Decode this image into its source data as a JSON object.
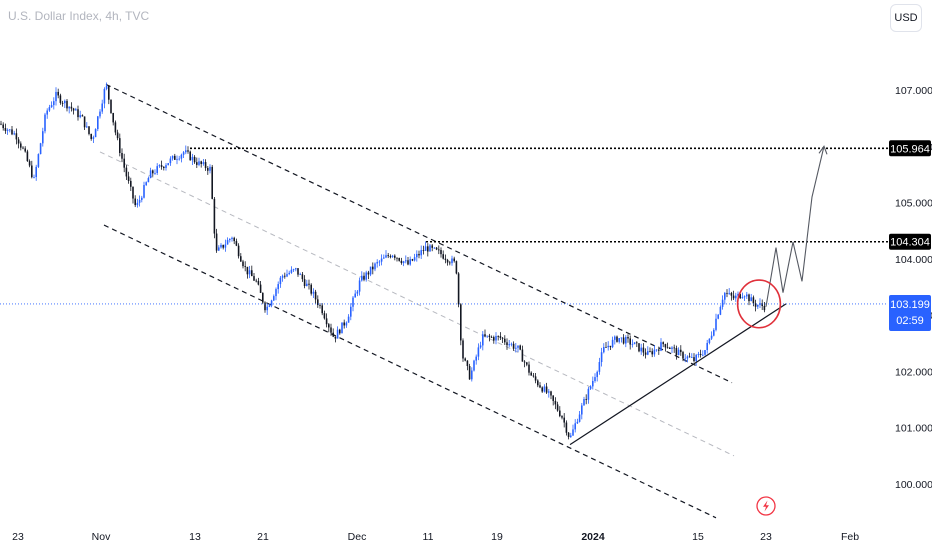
{
  "header": {
    "title": "U.S. Dollar Index, 4h, TVC",
    "currency_button": "USD"
  },
  "chart_data": {
    "type": "candlestick",
    "ylim": [
      99.6,
      108.0
    ],
    "y_ticks": [
      "107.000",
      "106.000",
      "105.000",
      "104.000",
      "103.000",
      "102.000",
      "101.000",
      "100.000"
    ],
    "y_tick_values": [
      107,
      106,
      105,
      104,
      103,
      102,
      101,
      100
    ],
    "x_ticks": [
      "23",
      "Nov",
      "13",
      "21",
      "Dec",
      "11",
      "19",
      "2024",
      "15",
      "23",
      "Feb"
    ],
    "x_tick_bold": [
      false,
      false,
      false,
      false,
      false,
      false,
      false,
      true,
      false,
      false,
      false
    ],
    "price_levels": [
      {
        "value": 105.964,
        "label": "105.964"
      },
      {
        "value": 104.304,
        "label": "104.304"
      }
    ],
    "last_price": {
      "value": 103.199,
      "label": "103.199",
      "countdown": "02:59"
    },
    "path_keypoints": [
      [
        0,
        106.4
      ],
      [
        16,
        106.2
      ],
      [
        24,
        105.9
      ],
      [
        34,
        105.4
      ],
      [
        46,
        106.6
      ],
      [
        56,
        106.9
      ],
      [
        70,
        106.7
      ],
      [
        82,
        106.5
      ],
      [
        92,
        106.1
      ],
      [
        106,
        107.1
      ],
      [
        116,
        106.2
      ],
      [
        126,
        105.5
      ],
      [
        136,
        104.9
      ],
      [
        150,
        105.5
      ],
      [
        166,
        105.7
      ],
      [
        184,
        105.9
      ],
      [
        198,
        105.7
      ],
      [
        210,
        105.6
      ],
      [
        216,
        104.1
      ],
      [
        232,
        104.4
      ],
      [
        246,
        103.8
      ],
      [
        256,
        103.6
      ],
      [
        266,
        103.1
      ],
      [
        282,
        103.7
      ],
      [
        296,
        103.8
      ],
      [
        312,
        103.4
      ],
      [
        322,
        103.1
      ],
      [
        334,
        102.6
      ],
      [
        346,
        102.9
      ],
      [
        360,
        103.6
      ],
      [
        376,
        103.9
      ],
      [
        392,
        104.1
      ],
      [
        408,
        103.9
      ],
      [
        426,
        104.2
      ],
      [
        440,
        104.1
      ],
      [
        456,
        103.9
      ],
      [
        462,
        102.3
      ],
      [
        470,
        101.9
      ],
      [
        482,
        102.6
      ],
      [
        500,
        102.6
      ],
      [
        518,
        102.4
      ],
      [
        532,
        101.9
      ],
      [
        548,
        101.6
      ],
      [
        562,
        101.2
      ],
      [
        570,
        100.8
      ],
      [
        578,
        101.2
      ],
      [
        592,
        101.8
      ],
      [
        604,
        102.4
      ],
      [
        618,
        102.6
      ],
      [
        632,
        102.5
      ],
      [
        648,
        102.3
      ],
      [
        664,
        102.5
      ],
      [
        680,
        102.3
      ],
      [
        694,
        102.2
      ],
      [
        706,
        102.4
      ],
      [
        712,
        102.7
      ],
      [
        724,
        103.4
      ],
      [
        734,
        103.3
      ],
      [
        744,
        103.4
      ],
      [
        754,
        103.2
      ],
      [
        766,
        103.15
      ]
    ],
    "channel_lines": [
      {
        "style": "dashed",
        "from": [
          106,
          107.1
        ],
        "to": [
          732,
          101.8
        ]
      },
      {
        "style": "dashed",
        "from": [
          104,
          104.6
        ],
        "to": [
          716,
          99.4
        ]
      },
      {
        "style": "dashed-light",
        "from": [
          100,
          105.9
        ],
        "to": [
          734,
          100.5
        ]
      }
    ],
    "trend_line": {
      "from": [
        570,
        100.7
      ],
      "to": [
        786,
        103.2
      ]
    },
    "projection": [
      [
        766,
        103.15
      ],
      [
        776,
        104.2
      ],
      [
        783,
        103.4
      ],
      [
        793,
        104.3
      ],
      [
        802,
        103.6
      ],
      [
        812,
        105.1
      ],
      [
        824,
        106.0
      ]
    ],
    "highlight_circle": {
      "center": [
        759,
        103.2
      ],
      "radius_value": 0.4
    },
    "colors": {
      "up": "#2962ff",
      "down": "#131722",
      "price_line": "#2962ff",
      "level_line": "#000000",
      "circle": "#e0303a"
    },
    "grid": false
  }
}
